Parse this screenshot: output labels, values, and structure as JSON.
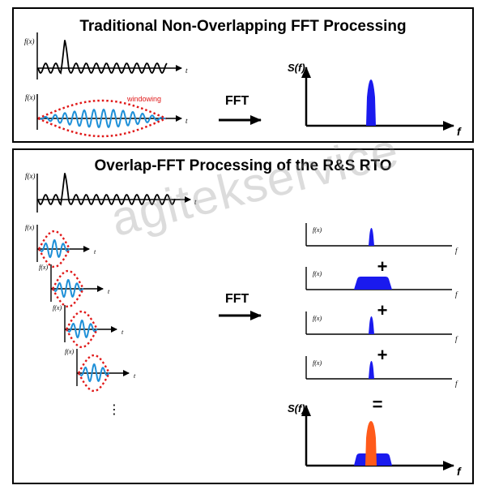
{
  "top_panel": {
    "title": "Traditional Non-Overlapping FFT Processing",
    "signal_axis_label": "f(x)",
    "time_axis_label": "t",
    "windowing_label": "windowing",
    "fft_label": "FFT",
    "spectrum_axis_label": "S(f)",
    "freq_axis_label": "f"
  },
  "bottom_panel": {
    "title": "Overlap-FFT Processing of the R&S RTO",
    "signal_axis_label": "f(x)",
    "time_axis_label": "t",
    "fft_label": "FFT",
    "spectrum_axis_label": "S(f)",
    "freq_axis_label": "f",
    "plus_symbol": "+",
    "equals_symbol": "=",
    "ellipsis": "⋮",
    "segment_count": 4,
    "partial_spectra": [
      "narrow",
      "wide",
      "narrow",
      "narrow"
    ]
  },
  "watermark": "agitekservice",
  "colors": {
    "signal": "#000000",
    "windowed_signal": "#1e90d8",
    "window": "#e01818",
    "windowing_label": "#e01818",
    "spectrum": "#1a1aee",
    "overlap_peak": "#ff5a1a"
  }
}
